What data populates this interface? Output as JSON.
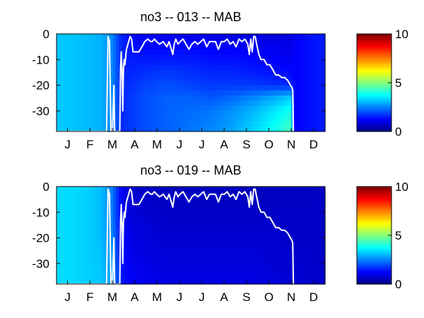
{
  "colors": {
    "line": "#ffffff",
    "axis": "#000000",
    "background": "#ffffff"
  },
  "chart_data": [
    {
      "type": "heatmap",
      "title": "no3 -- 013 -- MAB",
      "months": [
        "J",
        "F",
        "M",
        "A",
        "M",
        "J",
        "J",
        "A",
        "S",
        "O",
        "N",
        "D"
      ],
      "y_ticks": [
        0,
        -10,
        -20,
        -30
      ],
      "ylim": [
        -38,
        0
      ],
      "xlim": [
        0,
        365
      ],
      "colorbar": {
        "ticks": [
          0,
          5,
          10
        ],
        "clim": [
          0,
          10
        ]
      },
      "field": {
        "x_days": [
          0,
          20,
          40,
          60,
          75,
          88,
          100,
          120,
          150,
          180,
          210,
          240,
          270,
          300,
          320,
          322,
          345,
          365
        ],
        "depths": [
          0,
          -5,
          -10,
          -15,
          -20,
          -25,
          -30,
          -38
        ],
        "values": [
          [
            3.2,
            3.2,
            3.1,
            3.0,
            2.6,
            1.6,
            1.3,
            1.2,
            1.1,
            1.1,
            1.0,
            1.0,
            0.9,
            0.9,
            0.9,
            1.2,
            1.4,
            1.5
          ],
          [
            3.2,
            3.2,
            3.1,
            3.0,
            2.6,
            1.6,
            1.4,
            1.3,
            1.3,
            1.3,
            1.2,
            1.2,
            1.1,
            1.1,
            1.0,
            1.2,
            1.4,
            1.5
          ],
          [
            3.2,
            3.2,
            3.1,
            3.0,
            2.6,
            1.6,
            1.5,
            1.5,
            1.5,
            1.5,
            1.4,
            1.4,
            1.3,
            1.2,
            1.1,
            1.2,
            1.4,
            1.5
          ],
          [
            3.2,
            3.2,
            3.1,
            3.0,
            2.6,
            1.6,
            1.6,
            1.7,
            1.8,
            1.7,
            1.6,
            1.6,
            1.5,
            1.4,
            1.3,
            1.2,
            1.4,
            1.5
          ],
          [
            3.2,
            3.2,
            3.1,
            3.0,
            2.6,
            1.6,
            1.7,
            1.9,
            2.0,
            1.9,
            1.8,
            1.8,
            1.8,
            1.7,
            1.6,
            1.2,
            1.4,
            1.5
          ],
          [
            3.2,
            3.2,
            3.1,
            3.0,
            2.6,
            1.6,
            1.8,
            2.0,
            2.2,
            2.2,
            2.1,
            2.3,
            2.6,
            3.0,
            3.3,
            1.2,
            1.4,
            1.5
          ],
          [
            3.2,
            3.2,
            3.1,
            3.0,
            2.6,
            1.6,
            1.8,
            2.0,
            2.2,
            2.3,
            2.4,
            2.7,
            3.1,
            3.6,
            4.0,
            1.2,
            1.4,
            1.5
          ],
          [
            3.2,
            3.2,
            3.1,
            3.0,
            2.6,
            1.6,
            1.8,
            2.0,
            2.2,
            2.4,
            2.6,
            2.9,
            3.4,
            4.0,
            4.5,
            1.2,
            1.4,
            1.5
          ]
        ]
      },
      "mixed_layer_depth": {
        "days": [
          0,
          68,
          70,
          72,
          74,
          76,
          78,
          79,
          80,
          82,
          84,
          86,
          87,
          88,
          89,
          90,
          91,
          92,
          93,
          95,
          97,
          99,
          100,
          102,
          104,
          106,
          108,
          112,
          116,
          120,
          124,
          128,
          130,
          133,
          136,
          140,
          145,
          150,
          153,
          156,
          158,
          160,
          162,
          165,
          168,
          172,
          176,
          180,
          184,
          188,
          192,
          196,
          200,
          204,
          208,
          212,
          216,
          220,
          224,
          228,
          232,
          236,
          240,
          244,
          248,
          252,
          256,
          260,
          262,
          264,
          266,
          268,
          270,
          272,
          275,
          278,
          282,
          286,
          290,
          294,
          298,
          302,
          306,
          310,
          314,
          316,
          318,
          320,
          321,
          322
        ],
        "values": [
          -38,
          -38,
          -1,
          -3,
          -38,
          -38,
          -20,
          -38,
          -38,
          -38,
          -38,
          -38,
          -13,
          -7,
          -15,
          -30,
          -14,
          -10,
          -12,
          -6,
          -4,
          -2,
          -1,
          -2,
          -7,
          -7,
          -7,
          -7,
          -5,
          -3,
          -2,
          -3,
          -3,
          -2,
          -3,
          -4,
          -3,
          -5,
          -3,
          -6,
          -8,
          -4,
          -2,
          -4,
          -3,
          -2,
          -4,
          -6,
          -4,
          -3,
          -4,
          -3,
          -2,
          -5,
          -3,
          -3,
          -3,
          -6,
          -3,
          -3,
          -2,
          -4,
          -3,
          -5,
          -2,
          -3,
          -2,
          -4,
          -8,
          -2,
          -7,
          -1,
          -1,
          -4,
          -8,
          -10,
          -10,
          -12,
          -12,
          -14,
          -16,
          -16,
          -17,
          -17,
          -18,
          -19,
          -20,
          -21,
          -22,
          -38
        ]
      }
    },
    {
      "type": "heatmap",
      "title": "no3 -- 019 -- MAB",
      "months": [
        "J",
        "F",
        "M",
        "A",
        "M",
        "J",
        "J",
        "A",
        "S",
        "O",
        "N",
        "D"
      ],
      "y_ticks": [
        0,
        -10,
        -20,
        -30
      ],
      "ylim": [
        -38,
        0
      ],
      "xlim": [
        0,
        365
      ],
      "colorbar": {
        "ticks": [
          0,
          5,
          10
        ],
        "clim": [
          0,
          10
        ]
      },
      "field": {
        "x_days": [
          0,
          20,
          40,
          60,
          75,
          88,
          100,
          120,
          150,
          180,
          210,
          240,
          270,
          300,
          330,
          365
        ],
        "depths": [
          0,
          -10,
          -20,
          -30,
          -38
        ],
        "values": [
          [
            3.4,
            3.4,
            3.3,
            3.1,
            2.5,
            1.2,
            0.8,
            0.7,
            0.6,
            0.6,
            0.6,
            0.6,
            0.6,
            0.6,
            0.6,
            0.7
          ],
          [
            3.4,
            3.4,
            3.3,
            3.1,
            2.5,
            1.2,
            0.9,
            0.8,
            0.7,
            0.7,
            0.7,
            0.7,
            0.7,
            0.7,
            0.7,
            0.7
          ],
          [
            3.4,
            3.4,
            3.3,
            3.1,
            2.6,
            1.3,
            1.0,
            0.9,
            0.8,
            0.8,
            0.8,
            0.8,
            0.8,
            0.8,
            0.7,
            0.7
          ],
          [
            3.4,
            3.4,
            3.3,
            3.2,
            2.7,
            1.4,
            1.1,
            1.0,
            0.9,
            0.9,
            0.9,
            0.9,
            0.9,
            0.8,
            0.8,
            0.7
          ],
          [
            3.4,
            3.4,
            3.3,
            3.2,
            2.8,
            1.5,
            1.2,
            1.1,
            1.0,
            1.0,
            1.0,
            1.0,
            1.0,
            0.9,
            0.8,
            0.7
          ]
        ]
      },
      "mixed_layer_depth": {
        "days": [
          0,
          68,
          70,
          72,
          74,
          76,
          78,
          79,
          80,
          82,
          84,
          86,
          87,
          88,
          89,
          90,
          91,
          92,
          93,
          95,
          97,
          99,
          100,
          102,
          104,
          106,
          108,
          112,
          116,
          120,
          124,
          128,
          130,
          133,
          136,
          140,
          145,
          150,
          153,
          156,
          158,
          160,
          162,
          165,
          168,
          172,
          176,
          180,
          184,
          188,
          192,
          196,
          200,
          204,
          208,
          212,
          216,
          220,
          224,
          228,
          232,
          236,
          240,
          244,
          248,
          252,
          256,
          260,
          262,
          264,
          266,
          268,
          270,
          272,
          275,
          278,
          282,
          286,
          290,
          294,
          298,
          302,
          306,
          310,
          314,
          316,
          318,
          320,
          321,
          322
        ],
        "values": [
          -38,
          -38,
          -1,
          -3,
          -38,
          -38,
          -20,
          -38,
          -38,
          -38,
          -38,
          -38,
          -13,
          -7,
          -15,
          -30,
          -14,
          -10,
          -12,
          -6,
          -4,
          -2,
          -1,
          -2,
          -7,
          -7,
          -7,
          -7,
          -5,
          -3,
          -2,
          -3,
          -3,
          -2,
          -3,
          -4,
          -3,
          -5,
          -3,
          -6,
          -8,
          -4,
          -2,
          -4,
          -3,
          -2,
          -4,
          -6,
          -4,
          -3,
          -4,
          -3,
          -2,
          -5,
          -3,
          -3,
          -3,
          -6,
          -3,
          -3,
          -2,
          -4,
          -3,
          -5,
          -2,
          -3,
          -2,
          -4,
          -8,
          -2,
          -7,
          -1,
          -1,
          -4,
          -8,
          -10,
          -10,
          -12,
          -12,
          -14,
          -16,
          -16,
          -17,
          -17,
          -18,
          -19,
          -20,
          -21,
          -22,
          -38
        ]
      }
    }
  ]
}
